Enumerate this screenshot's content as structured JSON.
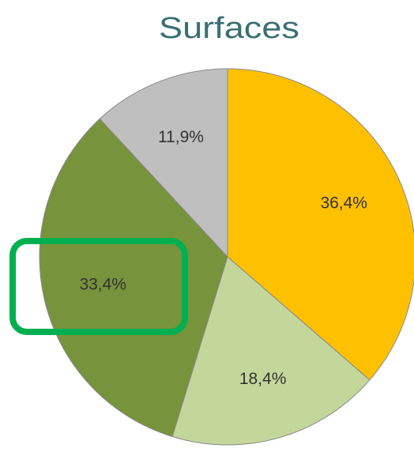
{
  "chart_data": {
    "type": "pie",
    "title": "Surfaces",
    "categories": [
      null,
      null,
      null,
      null
    ],
    "values": [
      36.4,
      18.4,
      33.4,
      11.9
    ],
    "value_labels": [
      "36,4%",
      "18,4%",
      "33,4%",
      "11,9%"
    ],
    "colors": [
      "#ffc000",
      "#c4d79b",
      "#77933c",
      "#bfbfbf"
    ]
  }
}
